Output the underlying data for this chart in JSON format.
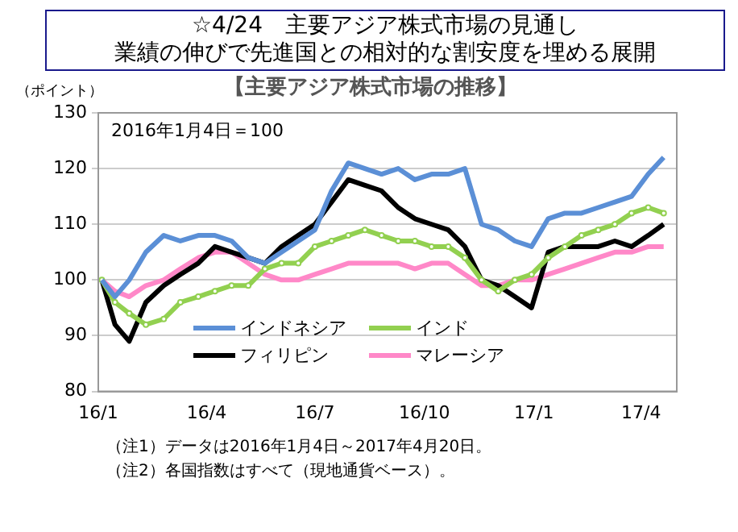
{
  "chart_data": {
    "type": "line",
    "title": "☆4/24　主要アジア株式市場の見通し",
    "subtitle": "業績の伸びで先進国との相対的な割安度を埋める展開",
    "ylabel": "（ポイント）",
    "annotations": [
      "【主要アジア株式市場の推移】",
      "2016年1月4日＝100",
      "（注1）データは2016年1月4日～2017年4月20日。",
      "（注2）各国指数はすべて（現地通貨ベース）。"
    ],
    "x": [
      "2016-01-04",
      "2016-01-15",
      "2016-01-27",
      "2016-02-10",
      "2016-02-25",
      "2016-03-10",
      "2016-03-25",
      "2016-04-08",
      "2016-04-22",
      "2016-05-06",
      "2016-05-20",
      "2016-06-03",
      "2016-06-17",
      "2016-07-01",
      "2016-07-15",
      "2016-07-29",
      "2016-08-12",
      "2016-08-26",
      "2016-09-09",
      "2016-09-23",
      "2016-10-07",
      "2016-10-21",
      "2016-11-04",
      "2016-11-18",
      "2016-12-02",
      "2016-12-16",
      "2016-12-30",
      "2017-01-13",
      "2017-01-27",
      "2017-02-10",
      "2017-02-24",
      "2017-03-10",
      "2017-03-24",
      "2017-04-07",
      "2017-04-20"
    ],
    "series": [
      {
        "name": "インドネシア",
        "color": "#5b8fd6",
        "values": [
          100,
          97,
          100,
          105,
          108,
          107,
          108,
          108,
          107,
          104,
          103,
          105,
          107,
          109,
          116,
          121,
          120,
          119,
          120,
          118,
          119,
          119,
          120,
          110,
          109,
          107,
          106,
          111,
          112,
          112,
          113,
          114,
          115,
          119,
          122
        ]
      },
      {
        "name": "インド",
        "color": "#92d050",
        "marker": "circle",
        "values": [
          100,
          96,
          94,
          92,
          93,
          96,
          97,
          98,
          99,
          99,
          102,
          103,
          103,
          106,
          107,
          108,
          109,
          108,
          107,
          107,
          106,
          106,
          104,
          100,
          98,
          100,
          101,
          104,
          106,
          108,
          109,
          110,
          112,
          113,
          112
        ]
      },
      {
        "name": "フィリピン",
        "color": "#000000",
        "values": [
          100,
          92,
          89,
          96,
          99,
          101,
          103,
          106,
          105,
          104,
          103,
          106,
          108,
          110,
          114,
          118,
          117,
          116,
          113,
          111,
          110,
          109,
          106,
          100,
          99,
          97,
          95,
          105,
          106,
          106,
          106,
          107,
          106,
          108,
          110
        ]
      },
      {
        "name": "マレーシア",
        "color": "#ff88c8",
        "values": [
          100,
          98,
          97,
          99,
          100,
          102,
          104,
          105,
          105,
          103,
          101,
          100,
          100,
          101,
          102,
          103,
          103,
          103,
          103,
          102,
          103,
          103,
          101,
          99,
          99,
          100,
          100,
          101,
          102,
          103,
          104,
          105,
          105,
          106,
          106
        ]
      }
    ],
    "xlim": [
      "2016-01-01",
      "2017-05-01"
    ],
    "xticks": [
      {
        "value": "2016-01-01",
        "label": "16/1"
      },
      {
        "value": "2016-04-01",
        "label": "16/4"
      },
      {
        "value": "2016-07-01",
        "label": "16/7"
      },
      {
        "value": "2016-10-01",
        "label": "16/10"
      },
      {
        "value": "2017-01-01",
        "label": "17/1"
      },
      {
        "value": "2017-04-01",
        "label": "17/4"
      }
    ],
    "ylim": [
      80,
      130
    ],
    "yticks": [
      80,
      90,
      100,
      110,
      120,
      130
    ],
    "grid": "y",
    "legend": "bottom",
    "line_style": "solid"
  }
}
